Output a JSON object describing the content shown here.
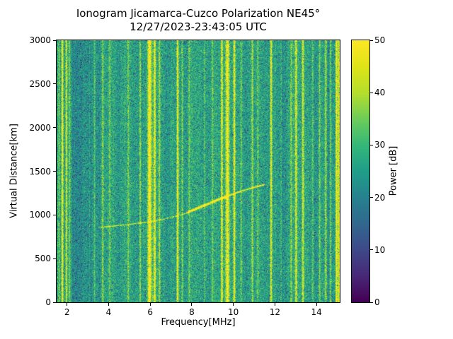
{
  "chart_data": {
    "type": "heatmap",
    "title_line1": "Ionogram Jicamarca-Cuzco Polarization NE45°",
    "title_line2": "12/27/2023-23:43:05 UTC",
    "xlabel": "Frequency[MHz]",
    "ylabel": "Virtual Distance[km]",
    "xlim": [
      1.5,
      15.12
    ],
    "ylim": [
      0,
      3000
    ],
    "xticks": [
      2,
      4,
      6,
      8,
      10,
      12,
      14
    ],
    "yticks": [
      0,
      500,
      1000,
      1500,
      2000,
      2500,
      3000
    ],
    "grid": false,
    "colorbar": {
      "label": "Power [dB]",
      "min": 0,
      "max": 50,
      "ticks": [
        0,
        10,
        20,
        30,
        40,
        50
      ],
      "colormap": "viridis"
    },
    "background_noise_db": {
      "typical_low": 19,
      "typical_high": 33,
      "dark_speckle_low": 6
    },
    "rfi_stripes": [
      {
        "freq": 1.62,
        "power": 10,
        "width": 0.035
      },
      {
        "freq": 1.78,
        "power": 26,
        "width": 0.045
      },
      {
        "freq": 1.97,
        "power": 20,
        "width": 0.04
      },
      {
        "freq": 2.12,
        "power": 9,
        "width": 0.035
      },
      {
        "freq": 3.33,
        "power": 9,
        "width": 0.035
      },
      {
        "freq": 3.72,
        "power": 12,
        "width": 0.04
      },
      {
        "freq": 4.05,
        "power": 7,
        "width": 0.035
      },
      {
        "freq": 4.95,
        "power": 9,
        "width": 0.04
      },
      {
        "freq": 5.52,
        "power": 13,
        "width": 0.045
      },
      {
        "freq": 5.97,
        "power": 27,
        "width": 0.08
      },
      {
        "freq": 6.22,
        "power": 24,
        "width": 0.05
      },
      {
        "freq": 6.45,
        "power": 11,
        "width": 0.04
      },
      {
        "freq": 7.32,
        "power": 25,
        "width": 0.05
      },
      {
        "freq": 7.55,
        "power": 12,
        "width": 0.04
      },
      {
        "freq": 7.88,
        "power": 10,
        "width": 0.04
      },
      {
        "freq": 8.62,
        "power": 8,
        "width": 0.035
      },
      {
        "freq": 9.0,
        "power": 10,
        "width": 0.04
      },
      {
        "freq": 9.45,
        "power": 23,
        "width": 0.05
      },
      {
        "freq": 9.72,
        "power": 27,
        "width": 0.09
      },
      {
        "freq": 10.05,
        "power": 24,
        "width": 0.05
      },
      {
        "freq": 10.38,
        "power": 11,
        "width": 0.04
      },
      {
        "freq": 10.92,
        "power": 13,
        "width": 0.045
      },
      {
        "freq": 11.18,
        "power": 8,
        "width": 0.035
      },
      {
        "freq": 11.82,
        "power": 25,
        "width": 0.05
      },
      {
        "freq": 12.3,
        "power": 7,
        "width": 0.035
      },
      {
        "freq": 12.78,
        "power": 11,
        "width": 0.04
      },
      {
        "freq": 13.02,
        "power": 19,
        "width": 0.045
      },
      {
        "freq": 13.35,
        "power": 17,
        "width": 0.045
      },
      {
        "freq": 13.82,
        "power": 9,
        "width": 0.04
      },
      {
        "freq": 14.15,
        "power": 12,
        "width": 0.04
      },
      {
        "freq": 14.45,
        "power": 15,
        "width": 0.05
      },
      {
        "freq": 14.68,
        "power": 11,
        "width": 0.04
      },
      {
        "freq": 14.97,
        "power": 25,
        "width": 0.05
      },
      {
        "freq": 15.08,
        "power": 20,
        "width": 0.04
      }
    ],
    "dark_bands": [
      {
        "from": 2.25,
        "to": 3.05,
        "offset": -4
      },
      {
        "from": 3.1,
        "to": 3.6,
        "offset": -5
      },
      {
        "from": 4.35,
        "to": 4.75,
        "offset": -2
      },
      {
        "from": 12.05,
        "to": 12.55,
        "offset": -3
      }
    ],
    "echo_trace": {
      "points": [
        [
          3.5,
          855
        ],
        [
          4.0,
          868
        ],
        [
          4.5,
          880
        ],
        [
          5.0,
          893
        ],
        [
          5.5,
          907
        ],
        [
          6.0,
          922
        ],
        [
          6.5,
          945
        ],
        [
          7.0,
          970
        ],
        [
          7.5,
          1000
        ],
        [
          8.0,
          1048
        ],
        [
          8.5,
          1098
        ],
        [
          9.0,
          1148
        ],
        [
          9.5,
          1195
        ],
        [
          10.0,
          1240
        ],
        [
          10.5,
          1280
        ],
        [
          11.0,
          1315
        ],
        [
          11.5,
          1348
        ]
      ],
      "segments": [
        {
          "from": 3.45,
          "to": 7.8,
          "power": 17,
          "sigma_km": 7
        },
        {
          "from": 7.8,
          "to": 9.7,
          "power": 30,
          "sigma_km": 14
        },
        {
          "from": 9.7,
          "to": 11.55,
          "power": 27,
          "sigma_km": 8
        }
      ]
    },
    "viridis_stops": [
      [
        0.0,
        68,
        1,
        84
      ],
      [
        0.1,
        72,
        40,
        120
      ],
      [
        0.2,
        62,
        74,
        137
      ],
      [
        0.3,
        49,
        104,
        142
      ],
      [
        0.4,
        38,
        130,
        142
      ],
      [
        0.5,
        31,
        158,
        137
      ],
      [
        0.6,
        53,
        183,
        121
      ],
      [
        0.7,
        109,
        205,
        89
      ],
      [
        0.8,
        180,
        222,
        44
      ],
      [
        0.9,
        223,
        227,
        24
      ],
      [
        1.0,
        253,
        231,
        37
      ]
    ]
  }
}
